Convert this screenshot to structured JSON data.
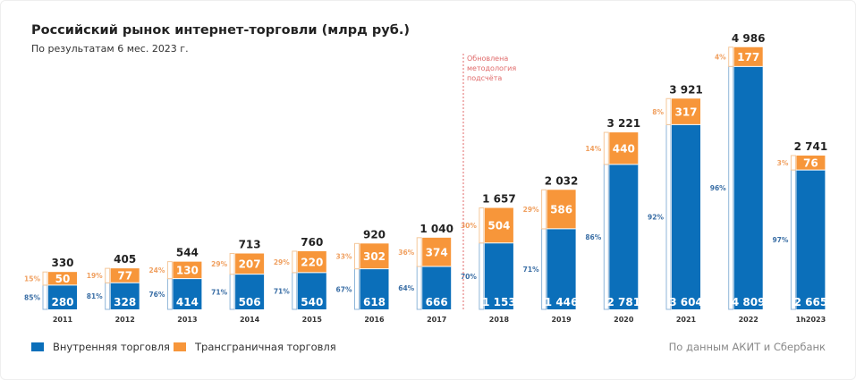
{
  "title": "Российский рынок интернет-торговли (млрд руб.)",
  "subtitle": "По результатам 6 мес. 2023 г.",
  "note": [
    "Обновлена",
    "методология",
    "подсчёта"
  ],
  "source": "По данным АКИТ и Сбербанк",
  "colors": {
    "domestic": "#0b6fba",
    "crossborder": "#f7963a",
    "note": "#e06a6a"
  },
  "chart_data": {
    "type": "bar",
    "stacked": true,
    "title": "Российский рынок интернет-торговли (млрд руб.)",
    "categories": [
      "2011",
      "2012",
      "2013",
      "2014",
      "2015",
      "2016",
      "2017",
      "2018",
      "2019",
      "2020",
      "2021",
      "2022",
      "1h2023"
    ],
    "totals": [
      "330",
      "405",
      "544",
      "713",
      "760",
      "920",
      "1 040",
      "1 657",
      "2 032",
      "3 221",
      "3 921",
      "4 986",
      "2 741"
    ],
    "series": [
      {
        "name": "Внутренняя торговля",
        "values": [
          280,
          328,
          414,
          506,
          540,
          618,
          666,
          1153,
          1446,
          2781,
          3604,
          4809,
          2665
        ],
        "labels": [
          "280",
          "328",
          "414",
          "506",
          "540",
          "618",
          "666",
          "1 153",
          "1 446",
          "2 781",
          "3 604",
          "4 809",
          "2 665"
        ],
        "shares": [
          "85%",
          "81%",
          "76%",
          "71%",
          "71%",
          "67%",
          "64%",
          "70%",
          "71%",
          "86%",
          "92%",
          "96%",
          "97%"
        ]
      },
      {
        "name": "Трансграничная торговля",
        "values": [
          50,
          77,
          130,
          207,
          220,
          302,
          374,
          504,
          586,
          440,
          317,
          177,
          76
        ],
        "labels": [
          "50",
          "77",
          "130",
          "207",
          "220",
          "302",
          "374",
          "504",
          "586",
          "440",
          "317",
          "177",
          "76"
        ],
        "shares": [
          "15%",
          "19%",
          "24%",
          "29%",
          "29%",
          "33%",
          "36%",
          "30%",
          "29%",
          "14%",
          "8%",
          "4%",
          "3%"
        ]
      }
    ],
    "legend": "bottom-left",
    "grid": false
  }
}
